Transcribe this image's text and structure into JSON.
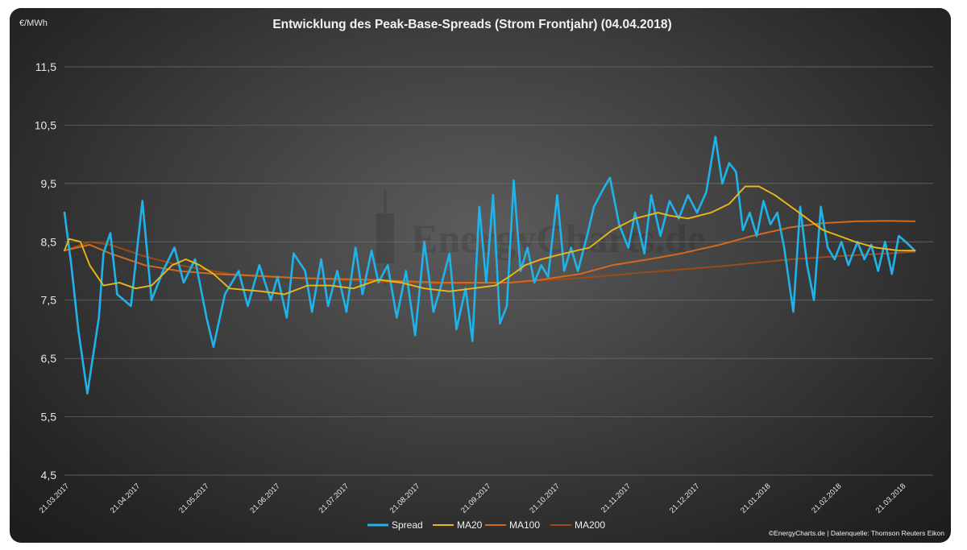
{
  "chart_data": {
    "type": "line",
    "title": "Entwicklung des Peak-Base-Spreads (Strom Frontjahr) (04.04.2018)",
    "unit_label": "€/MWh",
    "ylim": [
      4.5,
      11.5
    ],
    "yticks": [
      "4,5",
      "5,5",
      "6,5",
      "7,5",
      "8,5",
      "9,5",
      "10,5",
      "11,5"
    ],
    "x_tick_labels": [
      "21.03.2017",
      "21.04.2017",
      "21.05.2017",
      "21.06.2017",
      "21.07.2017",
      "21.08.2017",
      "21.09.2017",
      "21.10.2017",
      "21.11.2017",
      "21.12.2017",
      "21.01.2018",
      "21.02.2018",
      "21.03.2018"
    ],
    "grid": true,
    "legend_position": "bottom",
    "credit": "©EnergyCharts.de | Datenquelle: Thomson Reuters Eikon",
    "watermark": "EnergyCharts.de",
    "colors": {
      "Spread": "#1fb3ea",
      "MA20": "#e8b818",
      "MA100": "#d2691e",
      "MA200": "#9c4a17"
    },
    "series": [
      {
        "name": "Spread",
        "points": [
          [
            "21.03.2017",
            9.0
          ],
          [
            "24.03.2017",
            8.1
          ],
          [
            "27.03.2017",
            7.0
          ],
          [
            "31.03.2017",
            5.9
          ],
          [
            "05.04.2017",
            7.2
          ],
          [
            "07.04.2017",
            8.3
          ],
          [
            "10.04.2017",
            8.65
          ],
          [
            "13.04.2017",
            7.6
          ],
          [
            "19.04.2017",
            7.4
          ],
          [
            "24.04.2017",
            9.2
          ],
          [
            "28.04.2017",
            7.5
          ],
          [
            "03.05.2017",
            8.0
          ],
          [
            "08.05.2017",
            8.4
          ],
          [
            "12.05.2017",
            7.8
          ],
          [
            "17.05.2017",
            8.2
          ],
          [
            "22.05.2017",
            7.2
          ],
          [
            "25.05.2017",
            6.7
          ],
          [
            "30.05.2017",
            7.6
          ],
          [
            "05.06.2017",
            8.0
          ],
          [
            "09.06.2017",
            7.4
          ],
          [
            "14.06.2017",
            8.1
          ],
          [
            "19.06.2017",
            7.5
          ],
          [
            "22.06.2017",
            7.9
          ],
          [
            "26.06.2017",
            7.2
          ],
          [
            "29.06.2017",
            8.3
          ],
          [
            "04.07.2017",
            8.0
          ],
          [
            "07.07.2017",
            7.3
          ],
          [
            "11.07.2017",
            8.2
          ],
          [
            "14.07.2017",
            7.4
          ],
          [
            "18.07.2017",
            8.0
          ],
          [
            "22.07.2017",
            7.3
          ],
          [
            "26.07.2017",
            8.4
          ],
          [
            "29.07.2017",
            7.6
          ],
          [
            "02.08.2017",
            8.35
          ],
          [
            "05.08.2017",
            7.8
          ],
          [
            "09.08.2017",
            8.1
          ],
          [
            "13.08.2017",
            7.2
          ],
          [
            "17.08.2017",
            8.0
          ],
          [
            "21.08.2017",
            6.9
          ],
          [
            "25.08.2017",
            8.5
          ],
          [
            "29.08.2017",
            7.3
          ],
          [
            "01.09.2017",
            7.7
          ],
          [
            "05.09.2017",
            8.3
          ],
          [
            "08.09.2017",
            7.0
          ],
          [
            "12.09.2017",
            7.7
          ],
          [
            "15.09.2017",
            6.8
          ],
          [
            "18.09.2017",
            9.1
          ],
          [
            "21.09.2017",
            7.8
          ],
          [
            "24.09.2017",
            9.3
          ],
          [
            "27.09.2017",
            7.1
          ],
          [
            "30.09.2017",
            7.4
          ],
          [
            "03.10.2017",
            9.55
          ],
          [
            "06.10.2017",
            8.0
          ],
          [
            "09.10.2017",
            8.4
          ],
          [
            "12.10.2017",
            7.8
          ],
          [
            "15.10.2017",
            8.1
          ],
          [
            "18.10.2017",
            7.9
          ],
          [
            "22.10.2017",
            9.3
          ],
          [
            "25.10.2017",
            8.0
          ],
          [
            "28.10.2017",
            8.4
          ],
          [
            "31.10.2017",
            8.0
          ],
          [
            "04.11.2017",
            8.6
          ],
          [
            "07.11.2017",
            9.1
          ],
          [
            "11.11.2017",
            9.4
          ],
          [
            "14.11.2017",
            9.6
          ],
          [
            "18.11.2017",
            8.8
          ],
          [
            "22.11.2017",
            8.4
          ],
          [
            "25.11.2017",
            9.0
          ],
          [
            "29.11.2017",
            8.3
          ],
          [
            "02.12.2017",
            9.3
          ],
          [
            "06.12.2017",
            8.6
          ],
          [
            "10.12.2017",
            9.2
          ],
          [
            "14.12.2017",
            8.9
          ],
          [
            "18.12.2017",
            9.3
          ],
          [
            "22.12.2017",
            9.0
          ],
          [
            "26.12.2017",
            9.35
          ],
          [
            "30.12.2017",
            10.3
          ],
          [
            "02.01.2018",
            9.5
          ],
          [
            "05.01.2018",
            9.85
          ],
          [
            "08.01.2018",
            9.7
          ],
          [
            "11.01.2018",
            8.7
          ],
          [
            "14.01.2018",
            9.0
          ],
          [
            "17.01.2018",
            8.6
          ],
          [
            "20.01.2018",
            9.2
          ],
          [
            "23.01.2018",
            8.8
          ],
          [
            "26.01.2018",
            9.0
          ],
          [
            "29.01.2018",
            8.4
          ],
          [
            "02.02.2018",
            7.3
          ],
          [
            "05.02.2018",
            9.1
          ],
          [
            "08.02.2018",
            8.1
          ],
          [
            "11.02.2018",
            7.5
          ],
          [
            "14.02.2018",
            9.1
          ],
          [
            "17.02.2018",
            8.4
          ],
          [
            "20.02.2018",
            8.2
          ],
          [
            "23.02.2018",
            8.5
          ],
          [
            "26.02.2018",
            8.1
          ],
          [
            "02.03.2018",
            8.5
          ],
          [
            "05.03.2018",
            8.2
          ],
          [
            "08.03.2018",
            8.45
          ],
          [
            "11.03.2018",
            8.0
          ],
          [
            "14.03.2018",
            8.5
          ],
          [
            "17.03.2018",
            7.95
          ],
          [
            "20.03.2018",
            8.6
          ],
          [
            "23.03.2018",
            8.5
          ],
          [
            "27.03.2018",
            8.35
          ]
        ]
      },
      {
        "name": "MA20",
        "points": [
          [
            "21.03.2017",
            8.35
          ],
          [
            "23.03.2017",
            8.55
          ],
          [
            "28.03.2017",
            8.5
          ],
          [
            "01.04.2017",
            8.1
          ],
          [
            "07.04.2017",
            7.75
          ],
          [
            "14.04.2017",
            7.8
          ],
          [
            "21.04.2017",
            7.7
          ],
          [
            "28.04.2017",
            7.75
          ],
          [
            "07.05.2017",
            8.1
          ],
          [
            "13.05.2017",
            8.2
          ],
          [
            "19.05.2017",
            8.1
          ],
          [
            "25.05.2017",
            7.95
          ],
          [
            "01.06.2017",
            7.7
          ],
          [
            "15.06.2017",
            7.65
          ],
          [
            "25.06.2017",
            7.6
          ],
          [
            "05.07.2017",
            7.75
          ],
          [
            "15.07.2017",
            7.75
          ],
          [
            "25.07.2017",
            7.7
          ],
          [
            "05.08.2017",
            7.85
          ],
          [
            "15.08.2017",
            7.8
          ],
          [
            "25.08.2017",
            7.7
          ],
          [
            "05.09.2017",
            7.65
          ],
          [
            "15.09.2017",
            7.7
          ],
          [
            "25.09.2017",
            7.75
          ],
          [
            "01.10.2017",
            7.9
          ],
          [
            "08.10.2017",
            8.1
          ],
          [
            "15.10.2017",
            8.2
          ],
          [
            "25.10.2017",
            8.3
          ],
          [
            "05.11.2017",
            8.4
          ],
          [
            "15.11.2017",
            8.7
          ],
          [
            "25.11.2017",
            8.9
          ],
          [
            "05.12.2017",
            9.0
          ],
          [
            "10.12.2017",
            8.95
          ],
          [
            "18.12.2017",
            8.9
          ],
          [
            "28.12.2017",
            9.0
          ],
          [
            "05.01.2018",
            9.15
          ],
          [
            "12.01.2018",
            9.45
          ],
          [
            "18.01.2018",
            9.45
          ],
          [
            "25.01.2018",
            9.3
          ],
          [
            "01.02.2018",
            9.1
          ],
          [
            "08.02.2018",
            8.9
          ],
          [
            "15.02.2018",
            8.7
          ],
          [
            "22.02.2018",
            8.6
          ],
          [
            "01.03.2018",
            8.5
          ],
          [
            "10.03.2018",
            8.4
          ],
          [
            "20.03.2018",
            8.35
          ],
          [
            "27.03.2018",
            8.35
          ]
        ]
      },
      {
        "name": "MA100",
        "points": [
          [
            "21.03.2017",
            8.35
          ],
          [
            "01.04.2017",
            8.45
          ],
          [
            "10.04.2017",
            8.3
          ],
          [
            "25.04.2017",
            8.1
          ],
          [
            "10.05.2017",
            8.0
          ],
          [
            "25.05.2017",
            7.95
          ],
          [
            "10.06.2017",
            7.92
          ],
          [
            "01.07.2017",
            7.88
          ],
          [
            "01.08.2017",
            7.85
          ],
          [
            "01.09.2017",
            7.8
          ],
          [
            "01.10.2017",
            7.8
          ],
          [
            "15.10.2017",
            7.85
          ],
          [
            "01.11.2017",
            7.95
          ],
          [
            "15.11.2017",
            8.1
          ],
          [
            "01.12.2017",
            8.2
          ],
          [
            "15.12.2017",
            8.3
          ],
          [
            "01.01.2018",
            8.45
          ],
          [
            "15.01.2018",
            8.6
          ],
          [
            "01.02.2018",
            8.75
          ],
          [
            "15.02.2018",
            8.82
          ],
          [
            "01.03.2018",
            8.85
          ],
          [
            "15.03.2018",
            8.86
          ],
          [
            "27.03.2018",
            8.85
          ]
        ]
      },
      {
        "name": "MA200",
        "points": [
          [
            "21.03.2017",
            8.35
          ],
          [
            "01.04.2017",
            8.5
          ],
          [
            "10.04.2017",
            8.45
          ],
          [
            "25.04.2017",
            8.25
          ],
          [
            "10.05.2017",
            8.1
          ],
          [
            "01.06.2017",
            7.95
          ],
          [
            "01.07.2017",
            7.88
          ],
          [
            "01.08.2017",
            7.82
          ],
          [
            "01.09.2017",
            7.78
          ],
          [
            "01.10.2017",
            7.8
          ],
          [
            "01.11.2017",
            7.88
          ],
          [
            "01.12.2017",
            7.98
          ],
          [
            "01.01.2018",
            8.08
          ],
          [
            "01.02.2018",
            8.2
          ],
          [
            "01.03.2018",
            8.27
          ],
          [
            "15.03.2018",
            8.3
          ],
          [
            "27.03.2018",
            8.33
          ]
        ]
      }
    ]
  }
}
